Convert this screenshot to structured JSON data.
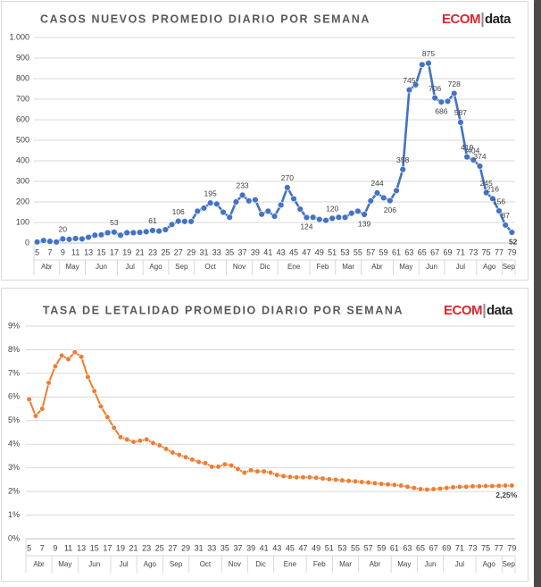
{
  "chart_data": [
    {
      "type": "line",
      "title": "CASOS NUEVOS  PROMEDIO DIARIO POR SEMANA",
      "logo": [
        "ECOM",
        "data"
      ],
      "categories": [
        "5",
        null,
        "7",
        null,
        "9",
        null,
        "11",
        null,
        "13",
        null,
        "15",
        null,
        "17",
        null,
        "19",
        null,
        "21",
        null,
        "23",
        null,
        "25",
        null,
        "27",
        null,
        "29",
        null,
        "31",
        null,
        "33",
        null,
        "35",
        null,
        "37",
        null,
        "39",
        null,
        "41",
        null,
        "43",
        null,
        "45",
        null,
        "47",
        null,
        "49",
        null,
        "51",
        null,
        "53",
        null,
        "55",
        null,
        "57",
        null,
        "59",
        null,
        "61",
        null,
        "63",
        null,
        "65",
        null,
        "67",
        null,
        "69",
        null,
        "71",
        null,
        "73",
        null,
        "75",
        null,
        "77",
        null,
        "79"
      ],
      "groups": [
        {
          "label": "Abr",
          "span": 4
        },
        {
          "label": "May",
          "span": 4
        },
        {
          "label": "Jun",
          "span": 5
        },
        {
          "label": "Jul",
          "span": 4
        },
        {
          "label": "Ago",
          "span": 4
        },
        {
          "label": "Sep",
          "span": 4
        },
        {
          "label": "Oct",
          "span": 5
        },
        {
          "label": "Nov",
          "span": 4
        },
        {
          "label": "Dic",
          "span": 4
        },
        {
          "label": "Ene",
          "span": 5
        },
        {
          "label": "Feb",
          "span": 4
        },
        {
          "label": "Mar",
          "span": 4
        },
        {
          "label": "Abr",
          "span": 5
        },
        {
          "label": "May",
          "span": 4
        },
        {
          "label": "Jun",
          "span": 4
        },
        {
          "label": "Jul",
          "span": 5
        },
        {
          "label": "Ago",
          "span": 4
        },
        {
          "label": "Sep",
          "span": 2
        }
      ],
      "values": [
        5,
        12,
        8,
        5,
        20,
        18,
        22,
        20,
        28,
        38,
        40,
        50,
        53,
        38,
        50,
        50,
        52,
        55,
        61,
        58,
        65,
        90,
        106,
        105,
        105,
        155,
        170,
        195,
        190,
        150,
        125,
        200,
        233,
        205,
        210,
        140,
        155,
        130,
        185,
        270,
        215,
        165,
        124,
        125,
        115,
        110,
        120,
        125,
        125,
        145,
        155,
        139,
        205,
        244,
        220,
        206,
        255,
        358,
        745,
        770,
        868,
        875,
        706,
        686,
        690,
        728,
        587,
        419,
        404,
        374,
        245,
        216,
        156,
        87,
        52
      ],
      "value_labels": [
        null,
        null,
        null,
        null,
        "20",
        null,
        null,
        null,
        null,
        null,
        null,
        null,
        "53",
        null,
        null,
        null,
        null,
        null,
        "61",
        null,
        null,
        null,
        "106",
        null,
        null,
        null,
        null,
        "195",
        null,
        null,
        null,
        null,
        "233",
        null,
        null,
        null,
        null,
        null,
        null,
        "270",
        null,
        null,
        "124",
        null,
        null,
        null,
        "120",
        null,
        null,
        null,
        null,
        "139",
        null,
        "244",
        null,
        "206",
        null,
        "358",
        "745",
        null,
        null,
        "875",
        "706",
        "686",
        null,
        "728",
        "587",
        "419",
        "404",
        "374",
        "245",
        "216",
        "156",
        "87",
        "52"
      ],
      "color": "#4472c4",
      "ylim": [
        0,
        1000
      ],
      "yticks": [
        0,
        100,
        200,
        300,
        400,
        500,
        600,
        700,
        800,
        900,
        {
          "value": 1000,
          "label": "1.000"
        }
      ],
      "grid": true
    },
    {
      "type": "line",
      "title": "TASA DE LETALIDAD PROMEDIO DIARIO POR SEMANA",
      "logo": [
        "ECOM",
        "data"
      ],
      "categories": [
        "5",
        null,
        "7",
        null,
        "9",
        null,
        "11",
        null,
        "13",
        null,
        "15",
        null,
        "17",
        null,
        "19",
        null,
        "21",
        null,
        "23",
        null,
        "25",
        null,
        "27",
        null,
        "29",
        null,
        "31",
        null,
        "33",
        null,
        "35",
        null,
        "37",
        null,
        "39",
        null,
        "41",
        null,
        "43",
        null,
        "45",
        null,
        "47",
        null,
        "49",
        null,
        "51",
        null,
        "53",
        null,
        "55",
        null,
        "57",
        null,
        "59",
        null,
        "61",
        null,
        "63",
        null,
        "65",
        null,
        "67",
        null,
        "69",
        null,
        "71",
        null,
        "73",
        null,
        "75",
        null,
        "77",
        null,
        "79"
      ],
      "groups": [
        {
          "label": "Abr",
          "span": 4
        },
        {
          "label": "May",
          "span": 4
        },
        {
          "label": "Jun",
          "span": 5
        },
        {
          "label": "Jul",
          "span": 4
        },
        {
          "label": "Ago",
          "span": 4
        },
        {
          "label": "Sep",
          "span": 4
        },
        {
          "label": "Oct",
          "span": 5
        },
        {
          "label": "Nov",
          "span": 4
        },
        {
          "label": "Dic",
          "span": 4
        },
        {
          "label": "Ene",
          "span": 5
        },
        {
          "label": "Feb",
          "span": 4
        },
        {
          "label": "Mar",
          "span": 4
        },
        {
          "label": "Abr",
          "span": 5
        },
        {
          "label": "May",
          "span": 4
        },
        {
          "label": "Jun",
          "span": 4
        },
        {
          "label": "Jul",
          "span": 5
        },
        {
          "label": "Ago",
          "span": 4
        },
        {
          "label": "Sep",
          "span": 2
        }
      ],
      "values": [
        5.9,
        5.2,
        5.5,
        6.6,
        7.3,
        7.75,
        7.6,
        7.9,
        7.7,
        6.85,
        6.25,
        5.6,
        5.15,
        4.7,
        4.3,
        4.2,
        4.1,
        4.15,
        4.2,
        4.05,
        3.95,
        3.8,
        3.65,
        3.55,
        3.45,
        3.35,
        3.25,
        3.2,
        3.05,
        3.05,
        3.15,
        3.1,
        2.95,
        2.8,
        2.9,
        2.85,
        2.85,
        2.8,
        2.7,
        2.65,
        2.62,
        2.6,
        2.6,
        2.6,
        2.58,
        2.55,
        2.52,
        2.5,
        2.47,
        2.45,
        2.43,
        2.4,
        2.38,
        2.35,
        2.32,
        2.3,
        2.28,
        2.25,
        2.2,
        2.15,
        2.1,
        2.08,
        2.1,
        2.12,
        2.15,
        2.18,
        2.2,
        2.2,
        2.22,
        2.22,
        2.23,
        2.23,
        2.24,
        2.25,
        2.25
      ],
      "value_labels": [
        null,
        null,
        null,
        null,
        null,
        null,
        null,
        null,
        null,
        null,
        null,
        null,
        null,
        null,
        null,
        null,
        null,
        null,
        null,
        null,
        null,
        null,
        null,
        null,
        null,
        null,
        null,
        null,
        null,
        null,
        null,
        null,
        null,
        null,
        null,
        null,
        null,
        null,
        null,
        null,
        null,
        null,
        null,
        null,
        null,
        null,
        null,
        null,
        null,
        null,
        null,
        null,
        null,
        null,
        null,
        null,
        null,
        null,
        null,
        null,
        null,
        null,
        null,
        null,
        null,
        null,
        null,
        null,
        null,
        null,
        null,
        null,
        null,
        null,
        "2,25%"
      ],
      "color": "#ed7d31",
      "ylim": [
        0,
        9
      ],
      "yticks": [
        {
          "value": 0,
          "label": "0%"
        },
        {
          "value": 1,
          "label": "1%"
        },
        {
          "value": 2,
          "label": "2%"
        },
        {
          "value": 3,
          "label": "3%"
        },
        {
          "value": 4,
          "label": "4%"
        },
        {
          "value": 5,
          "label": "5%"
        },
        {
          "value": 6,
          "label": "6%"
        },
        {
          "value": 7,
          "label": "7%"
        },
        {
          "value": 8,
          "label": "8%"
        },
        {
          "value": 9,
          "label": "9%"
        }
      ],
      "grid": true
    }
  ]
}
